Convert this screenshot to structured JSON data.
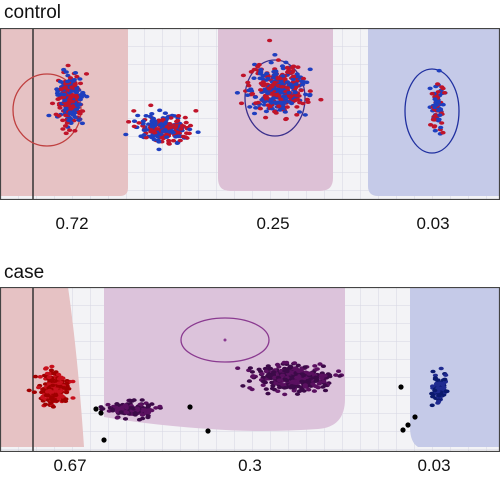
{
  "chart_data": [
    {
      "type": "scatter",
      "title": "control",
      "clusters": [
        {
          "frequency": "0.72",
          "center": [
            0.14,
            0.42
          ],
          "spread": [
            0.022,
            0.14
          ],
          "count": 260,
          "colors": [
            "#c0142a",
            "#1f3fbf"
          ]
        },
        {
          "frequency": "",
          "center": [
            0.33,
            0.58
          ],
          "spread": [
            0.05,
            0.07
          ],
          "count": 230,
          "colors": [
            "#c0142a",
            "#1f3fbf"
          ]
        },
        {
          "frequency": "0.25",
          "center": [
            0.555,
            0.36
          ],
          "spread": [
            0.05,
            0.13
          ],
          "count": 360,
          "colors": [
            "#c0142a",
            "#1f3fbf"
          ]
        },
        {
          "frequency": "0.03",
          "center": [
            0.875,
            0.45
          ],
          "spread": [
            0.012,
            0.14
          ],
          "count": 80,
          "colors": [
            "#c0142a",
            "#1f3fbf"
          ]
        }
      ],
      "frequencies": [
        "0.72",
        "0.25",
        "0.03"
      ]
    },
    {
      "type": "scatter",
      "title": "case",
      "clusters": [
        {
          "frequency": "0.67",
          "center": [
            0.11,
            0.62
          ],
          "spread": [
            0.025,
            0.08
          ],
          "count": 230,
          "colors": [
            "#c8101c",
            "#a00000"
          ]
        },
        {
          "frequency": "",
          "center": [
            0.26,
            0.74
          ],
          "spread": [
            0.04,
            0.04
          ],
          "count": 150,
          "colors": [
            "#5a1060",
            "#3c0a48"
          ]
        },
        {
          "frequency": "0.3",
          "center": [
            0.585,
            0.55
          ],
          "spread": [
            0.06,
            0.07
          ],
          "count": 380,
          "colors": [
            "#5a1060",
            "#3c0a48"
          ]
        },
        {
          "frequency": "0.03",
          "center": [
            0.88,
            0.62
          ],
          "spread": [
            0.015,
            0.09
          ],
          "count": 80,
          "colors": [
            "#1f2a90",
            "#0b1a6e"
          ]
        }
      ],
      "outliers": "#000000",
      "frequencies": [
        "0.67",
        "0.3",
        "0.03"
      ]
    }
  ],
  "colors": {
    "red_region": "#e7c4c4",
    "purple_region": "#dfc3d8",
    "blue_region": "#c4c9e8",
    "grid": "#d9d9e4",
    "border": "#333333"
  }
}
